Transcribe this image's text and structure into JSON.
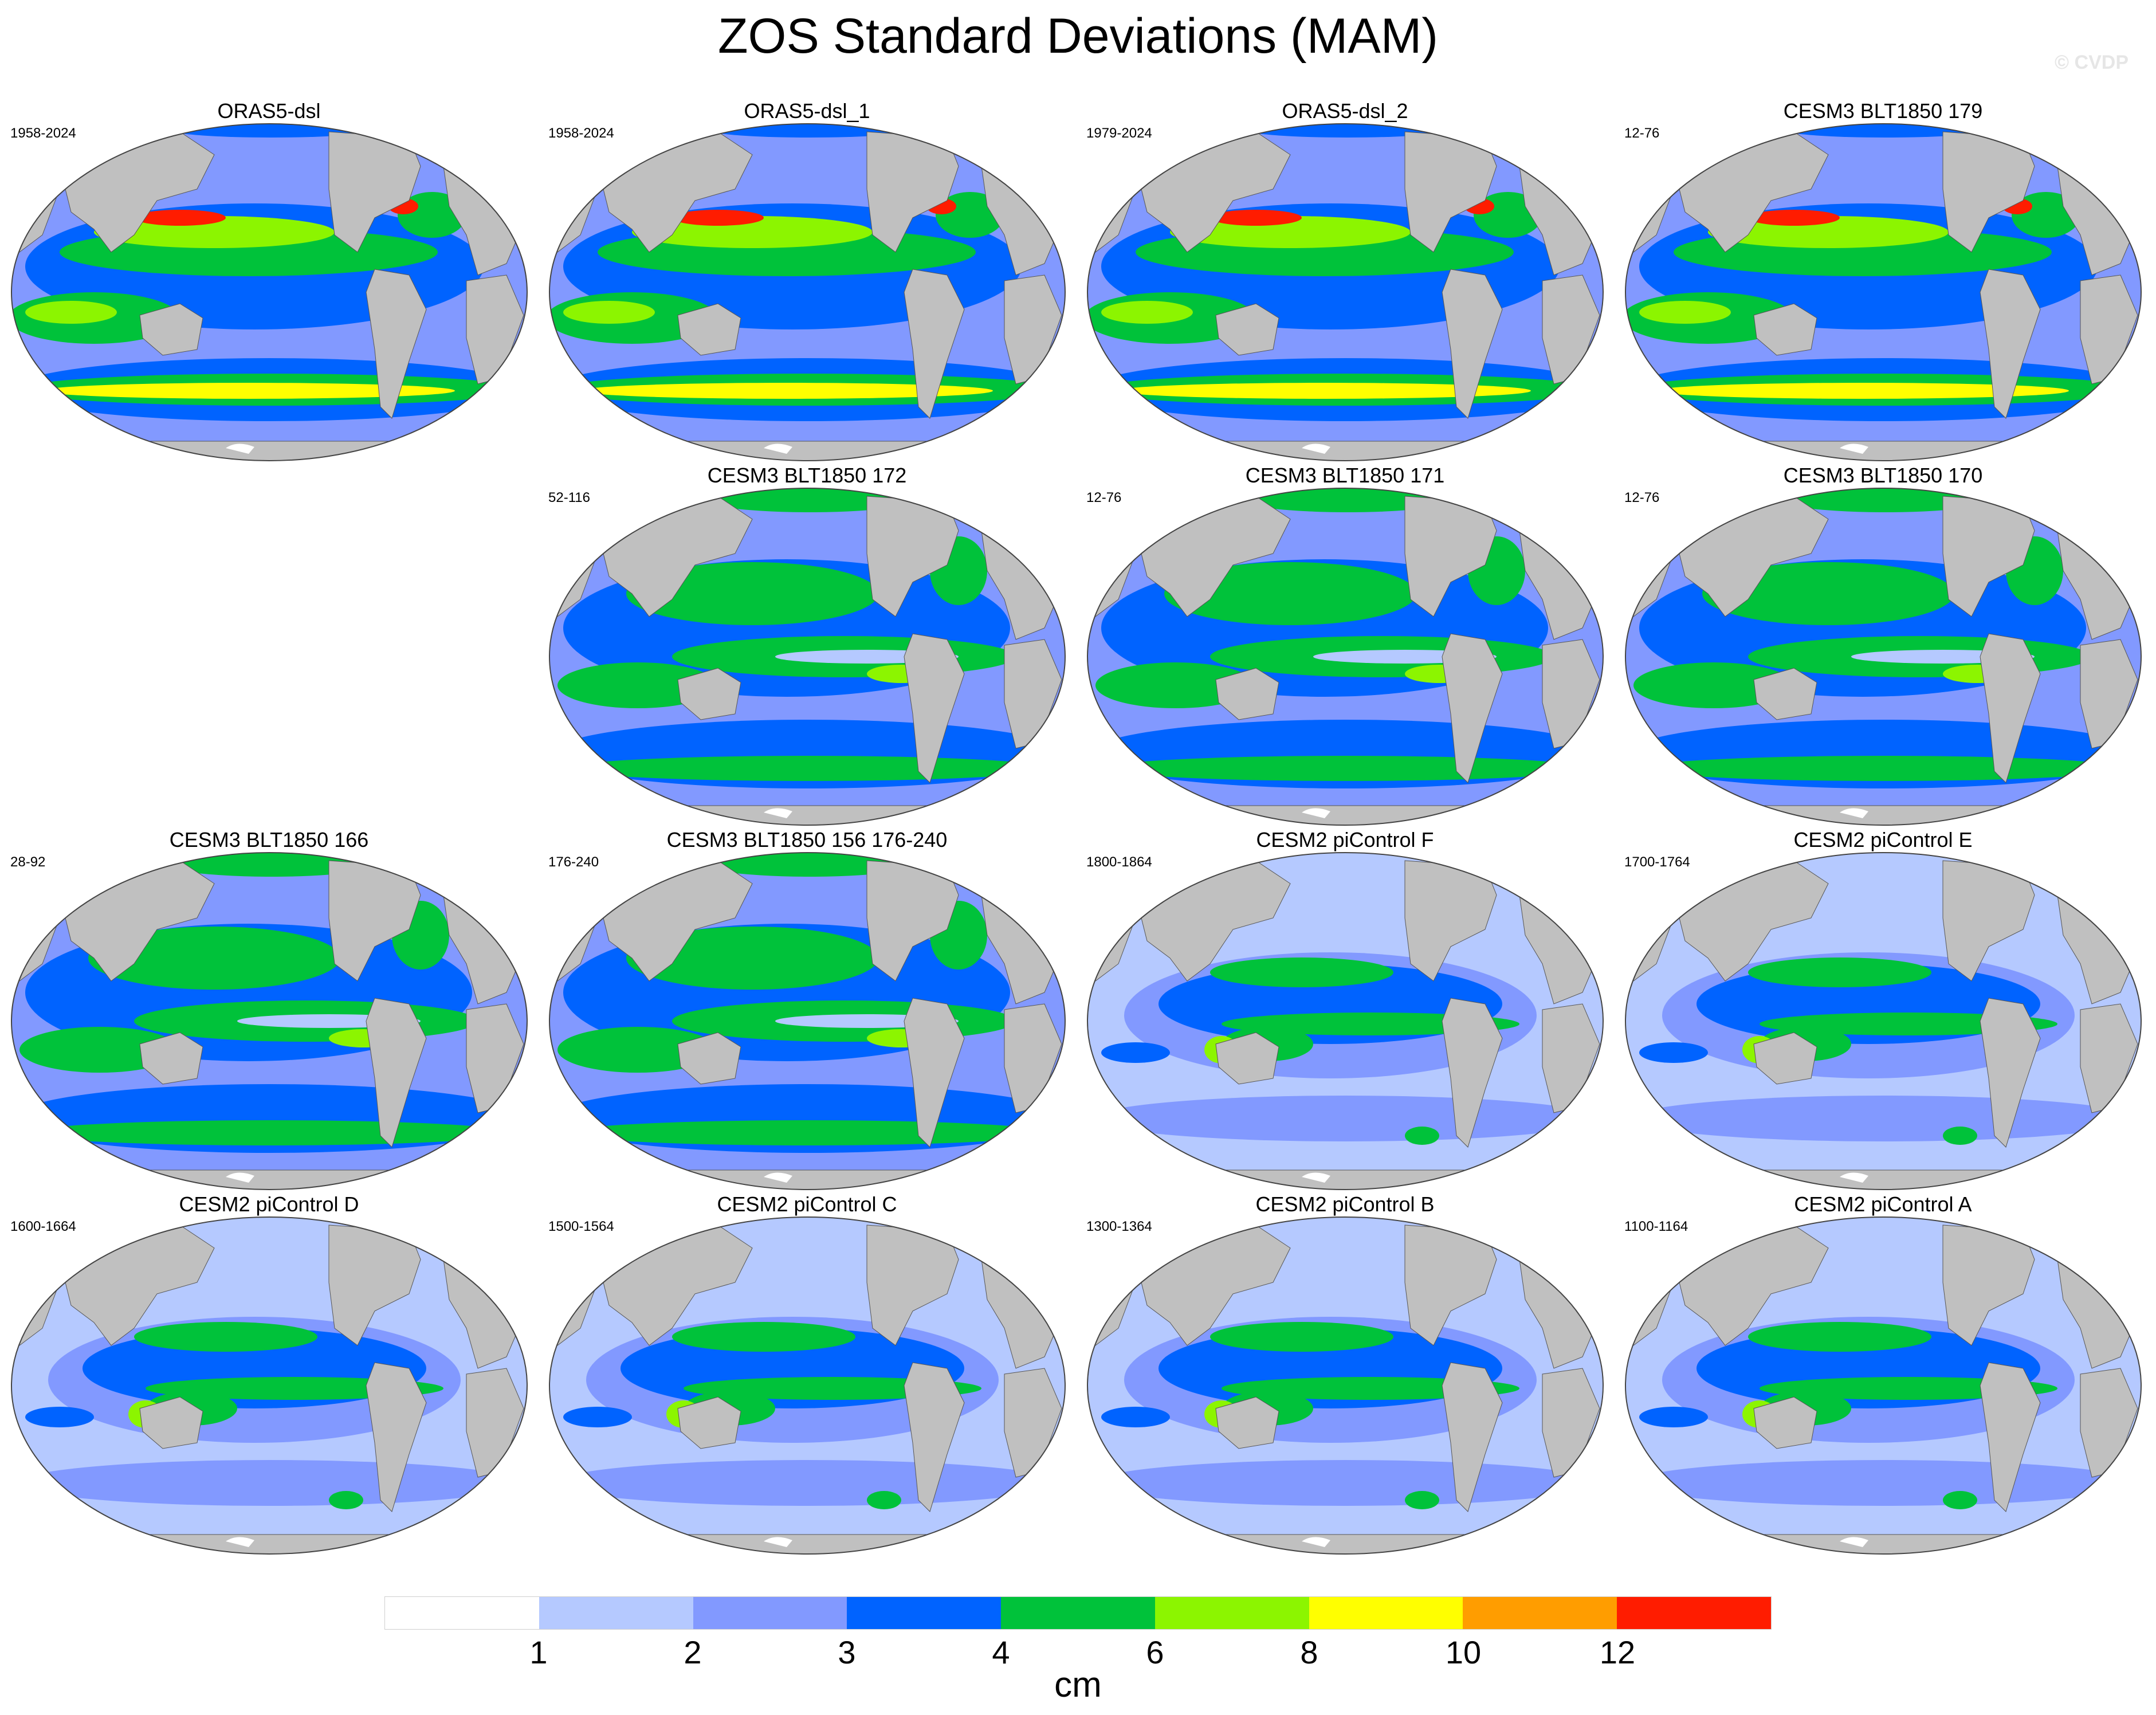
{
  "title": "ZOS Standard Deviations (MAM)",
  "watermark": "© CVDP",
  "colors": {
    "land": "#c0c0c0",
    "levels": [
      "#ffffff",
      "#b5c9ff",
      "#8299ff",
      "#0063ff",
      "#00c23a",
      "#8cf500",
      "#ffff00",
      "#ff9d00",
      "#ff1c00"
    ]
  },
  "colorbar": {
    "labels": [
      "1",
      "2",
      "3",
      "4",
      "6",
      "8",
      "10",
      "12"
    ],
    "units": "cm"
  },
  "panels": [
    {
      "title": "ORAS5-dsl",
      "period": "1958-2024",
      "intensity": 3
    },
    {
      "title": "ORAS5-dsl_1",
      "period": "1958-2024",
      "intensity": 3
    },
    {
      "title": "ORAS5-dsl_2",
      "period": "1979-2024",
      "intensity": 3
    },
    {
      "title": "CESM3 BLT1850 179",
      "period": "12-76",
      "intensity": 3
    },
    null,
    {
      "title": "CESM3 BLT1850 172",
      "period": "52-116",
      "intensity": 2
    },
    {
      "title": "CESM3 BLT1850 171",
      "period": "12-76",
      "intensity": 2
    },
    {
      "title": "CESM3 BLT1850 170",
      "period": "12-76",
      "intensity": 2
    },
    {
      "title": "CESM3 BLT1850 166",
      "period": "28-92",
      "intensity": 2
    },
    {
      "title": "CESM3 BLT1850 156 176-240",
      "period": "176-240",
      "intensity": 2
    },
    {
      "title": "CESM2 piControl F",
      "period": "1800-1864",
      "intensity": 1
    },
    {
      "title": "CESM2 piControl E",
      "period": "1700-1764",
      "intensity": 1
    },
    {
      "title": "CESM2 piControl D",
      "period": "1600-1664",
      "intensity": 1
    },
    {
      "title": "CESM2 piControl C",
      "period": "1500-1564",
      "intensity": 1
    },
    {
      "title": "CESM2 piControl B",
      "period": "1300-1364",
      "intensity": 1
    },
    {
      "title": "CESM2 piControl A",
      "period": "1100-1164",
      "intensity": 1
    }
  ]
}
